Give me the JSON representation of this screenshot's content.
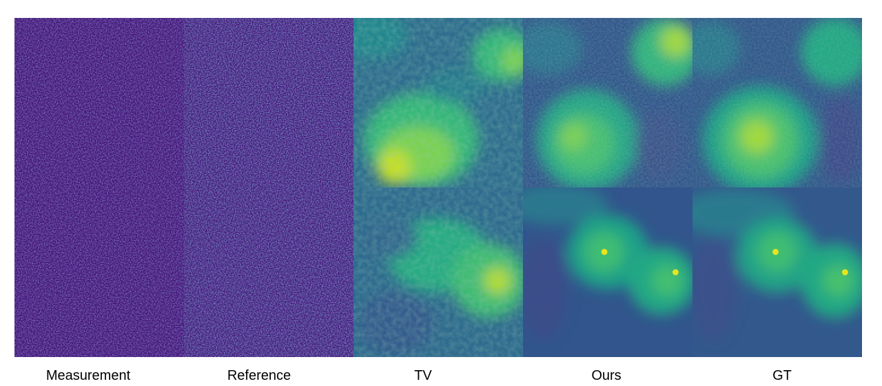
{
  "figure": {
    "columns": [
      {
        "key": "measurement",
        "label": "Measurement",
        "kind": "noise"
      },
      {
        "key": "reference",
        "label": "Reference",
        "kind": "noise"
      },
      {
        "key": "tv",
        "label": "TV",
        "kind": "tv"
      },
      {
        "key": "ours",
        "label": "Ours",
        "kind": "smooth"
      },
      {
        "key": "gt",
        "label": "GT",
        "kind": "smooth"
      }
    ],
    "rows": 2
  },
  "colormap": {
    "name": "viridis",
    "background_dark": "#3b2a7a",
    "low": "#3d4e8a",
    "mid": "#2a8c8c",
    "high": "#3fbc73",
    "peak": "#e7e51e"
  }
}
